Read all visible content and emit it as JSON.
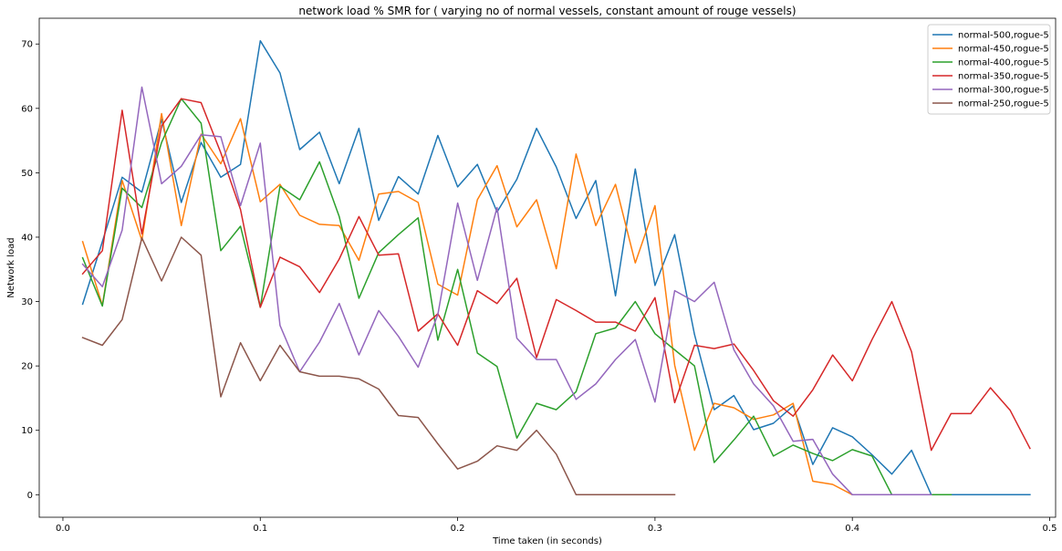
{
  "chart_data": {
    "type": "line",
    "title": "network load % SMR for ( varying no of normal vessels, constant amount of rouge vessels)",
    "xlabel": "Time taken (in seconds)",
    "ylabel": "Network load",
    "xlim": [
      -0.012,
      0.503
    ],
    "ylim": [
      -3.5,
      74
    ],
    "xticks": [
      "0.0",
      "0.1",
      "0.2",
      "0.3",
      "0.4",
      "0.5"
    ],
    "yticks": [
      "0",
      "10",
      "20",
      "30",
      "40",
      "50",
      "60",
      "70"
    ],
    "grid": false,
    "legend_position": "top-right",
    "series": [
      {
        "name": "normal-500,rogue-5",
        "color": "#1f77b4",
        "x": [
          0.01,
          0.02,
          0.03,
          0.04,
          0.05,
          0.06,
          0.07,
          0.08,
          0.09,
          0.1,
          0.11,
          0.12,
          0.13,
          0.14,
          0.15,
          0.16,
          0.17,
          0.18,
          0.19,
          0.2,
          0.21,
          0.22,
          0.23,
          0.24,
          0.25,
          0.26,
          0.27,
          0.28,
          0.29,
          0.3,
          0.31,
          0.32,
          0.33,
          0.34,
          0.35,
          0.36,
          0.37,
          0.38,
          0.39,
          0.4,
          0.41,
          0.42,
          0.43,
          0.44,
          0.45,
          0.46,
          0.47,
          0.48,
          0.49
        ],
        "y": [
          29.6,
          39.3,
          49.3,
          47.0,
          58.3,
          45.4,
          54.7,
          49.3,
          51.3,
          70.5,
          65.5,
          53.6,
          56.3,
          48.3,
          56.9,
          42.6,
          49.4,
          46.7,
          55.8,
          47.8,
          51.3,
          43.9,
          49.0,
          56.9,
          50.9,
          42.9,
          48.8,
          30.9,
          50.6,
          32.5,
          40.4,
          24.9,
          13.2,
          15.4,
          10.1,
          11.1,
          13.8,
          4.7,
          10.4,
          9.0,
          6.2,
          3.2,
          6.9,
          0.0,
          0.0,
          0.0,
          0.0,
          0.0,
          0.0
        ]
      },
      {
        "name": "normal-450,rogue-5",
        "color": "#ff7f0e",
        "x": [
          0.01,
          0.02,
          0.03,
          0.04,
          0.05,
          0.06,
          0.07,
          0.08,
          0.09,
          0.1,
          0.11,
          0.12,
          0.13,
          0.14,
          0.15,
          0.16,
          0.17,
          0.18,
          0.19,
          0.2,
          0.21,
          0.22,
          0.23,
          0.24,
          0.25,
          0.26,
          0.27,
          0.28,
          0.29,
          0.3,
          0.31,
          0.32,
          0.33,
          0.34,
          0.35,
          0.36,
          0.37,
          0.38,
          0.39,
          0.4,
          0.41,
          0.42,
          0.43,
          0.44
        ],
        "y": [
          39.3,
          29.4,
          48.8,
          39.5,
          59.2,
          41.8,
          56.0,
          51.4,
          58.4,
          45.5,
          48.2,
          43.4,
          42.0,
          41.8,
          36.4,
          46.7,
          47.1,
          45.4,
          32.7,
          31.0,
          45.8,
          51.1,
          41.6,
          45.8,
          35.1,
          52.9,
          41.8,
          48.2,
          36.0,
          44.9,
          20.1,
          6.9,
          14.2,
          13.5,
          11.7,
          12.4,
          14.2,
          2.1,
          1.6,
          0.0,
          0.0,
          0.0,
          0.0,
          0.0
        ]
      },
      {
        "name": "normal-400,rogue-5",
        "color": "#2ca02c",
        "x": [
          0.01,
          0.02,
          0.03,
          0.04,
          0.05,
          0.06,
          0.07,
          0.08,
          0.09,
          0.1,
          0.11,
          0.12,
          0.13,
          0.14,
          0.15,
          0.16,
          0.17,
          0.18,
          0.19,
          0.2,
          0.21,
          0.22,
          0.23,
          0.24,
          0.25,
          0.26,
          0.27,
          0.28,
          0.29,
          0.3,
          0.31,
          0.32,
          0.33,
          0.34,
          0.35,
          0.36,
          0.37,
          0.38,
          0.39,
          0.4,
          0.41,
          0.42,
          0.43,
          0.44,
          0.45
        ],
        "y": [
          36.8,
          29.3,
          47.6,
          44.6,
          54.7,
          61.5,
          57.7,
          37.9,
          41.7,
          29.1,
          47.9,
          45.8,
          51.7,
          43.2,
          30.5,
          37.6,
          40.4,
          43.0,
          24.0,
          35.0,
          22.0,
          19.9,
          8.8,
          14.2,
          13.2,
          16.0,
          25.0,
          25.9,
          30.0,
          25.0,
          22.5,
          20.0,
          5.0,
          8.5,
          12.2,
          6.0,
          7.7,
          6.4,
          5.3,
          7.0,
          6.0,
          0.0,
          0.0,
          0.0,
          0.0
        ]
      },
      {
        "name": "normal-350,rogue-5",
        "color": "#d62728",
        "x": [
          0.01,
          0.02,
          0.03,
          0.04,
          0.05,
          0.06,
          0.07,
          0.08,
          0.09,
          0.1,
          0.11,
          0.12,
          0.13,
          0.14,
          0.15,
          0.16,
          0.17,
          0.18,
          0.19,
          0.2,
          0.21,
          0.22,
          0.23,
          0.24,
          0.25,
          0.26,
          0.27,
          0.28,
          0.29,
          0.3,
          0.31,
          0.32,
          0.33,
          0.34,
          0.35,
          0.36,
          0.37,
          0.38,
          0.39,
          0.4,
          0.41,
          0.42,
          0.43,
          0.44,
          0.45,
          0.46,
          0.47,
          0.48,
          0.49
        ],
        "y": [
          34.3,
          37.9,
          59.7,
          40.5,
          57.3,
          61.5,
          60.9,
          53.1,
          44.3,
          29.1,
          36.9,
          35.4,
          31.4,
          36.6,
          43.2,
          37.2,
          37.4,
          25.4,
          28.1,
          23.2,
          31.7,
          29.7,
          33.6,
          21.3,
          30.3,
          28.6,
          26.8,
          26.8,
          25.4,
          30.6,
          14.3,
          23.2,
          22.7,
          23.4,
          19.3,
          14.6,
          12.2,
          16.3,
          21.7,
          17.7,
          24.1,
          30.0,
          22.2,
          6.9,
          12.6,
          12.6,
          16.6,
          13.1,
          7.2
        ]
      },
      {
        "name": "normal-300,rogue-5",
        "color": "#9467bd",
        "x": [
          0.01,
          0.02,
          0.03,
          0.04,
          0.05,
          0.06,
          0.07,
          0.08,
          0.09,
          0.1,
          0.11,
          0.12,
          0.13,
          0.14,
          0.15,
          0.16,
          0.17,
          0.18,
          0.19,
          0.2,
          0.21,
          0.22,
          0.23,
          0.24,
          0.25,
          0.26,
          0.27,
          0.28,
          0.29,
          0.3,
          0.31,
          0.32,
          0.33,
          0.34,
          0.35,
          0.36,
          0.37,
          0.38,
          0.39,
          0.4,
          0.41,
          0.42,
          0.43,
          0.44
        ],
        "y": [
          35.8,
          32.3,
          41.1,
          63.3,
          48.3,
          51.0,
          55.9,
          55.6,
          44.9,
          54.6,
          26.3,
          19.1,
          23.7,
          29.7,
          21.7,
          28.6,
          24.6,
          19.8,
          28.0,
          45.3,
          33.3,
          44.6,
          24.3,
          21.0,
          21.0,
          14.8,
          17.2,
          21.0,
          24.1,
          14.4,
          31.7,
          30.0,
          33.0,
          22.5,
          17.2,
          13.8,
          8.3,
          8.6,
          3.2,
          0.0,
          0.0,
          0.0,
          0.0,
          0.0
        ]
      },
      {
        "name": "normal-250,rogue-5",
        "color": "#8c564b",
        "x": [
          0.01,
          0.02,
          0.03,
          0.04,
          0.05,
          0.06,
          0.07,
          0.08,
          0.09,
          0.1,
          0.11,
          0.12,
          0.13,
          0.14,
          0.15,
          0.16,
          0.17,
          0.18,
          0.19,
          0.2,
          0.21,
          0.22,
          0.23,
          0.24,
          0.25,
          0.26,
          0.27,
          0.28,
          0.29,
          0.3,
          0.31
        ],
        "y": [
          24.4,
          23.2,
          27.2,
          39.9,
          33.2,
          40.0,
          37.2,
          15.2,
          23.6,
          17.7,
          23.2,
          19.1,
          18.4,
          18.4,
          18.0,
          16.4,
          12.3,
          12.0,
          7.9,
          4.0,
          5.2,
          7.6,
          6.9,
          10.0,
          6.3,
          0.0,
          0.0,
          0.0,
          0.0,
          0.0,
          0.0
        ]
      }
    ]
  }
}
